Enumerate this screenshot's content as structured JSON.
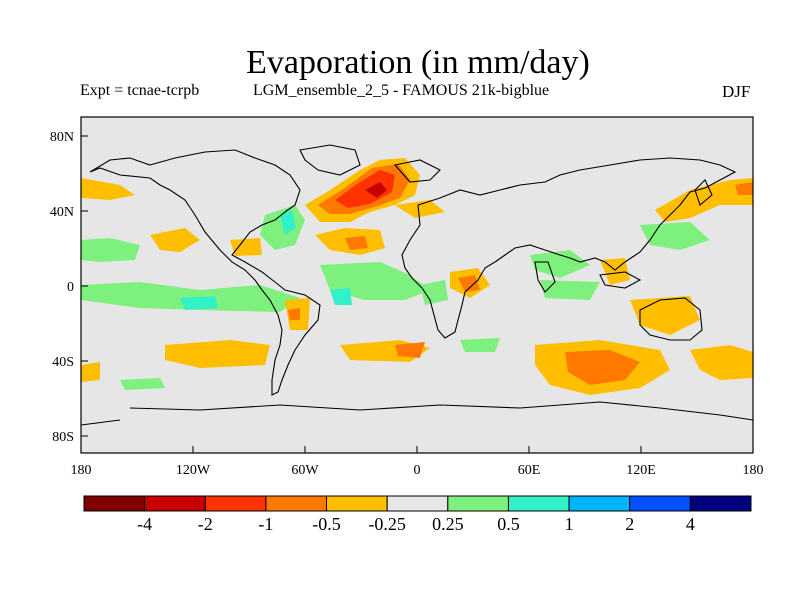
{
  "title": "Evaporation (in mm/day)",
  "expt_label": "Expt = tcnae-tcrpb",
  "run_name": "LGM_ensemble_2_5 - FAMOUS 21k-bigblue",
  "season": "DJF",
  "map": {
    "background_color": "#e6e6e6",
    "lat_ticks": [
      "80N",
      "40N",
      "0",
      "40S",
      "80S"
    ],
    "lon_ticks": [
      "180",
      "120W",
      "60W",
      "0",
      "60E",
      "120E",
      "180"
    ]
  },
  "colorbar": {
    "colors": [
      "#7f0000",
      "#c80000",
      "#ff3200",
      "#ff7800",
      "#ffbe00",
      "#e6e6e6",
      "#7df07d",
      "#32f0c8",
      "#00b4ff",
      "#0050ff",
      "#00007f"
    ],
    "labels": [
      "-4",
      "-2",
      "-1",
      "-0.5",
      "-0.25",
      "0.25",
      "0.5",
      "1",
      "2",
      "4"
    ]
  }
}
